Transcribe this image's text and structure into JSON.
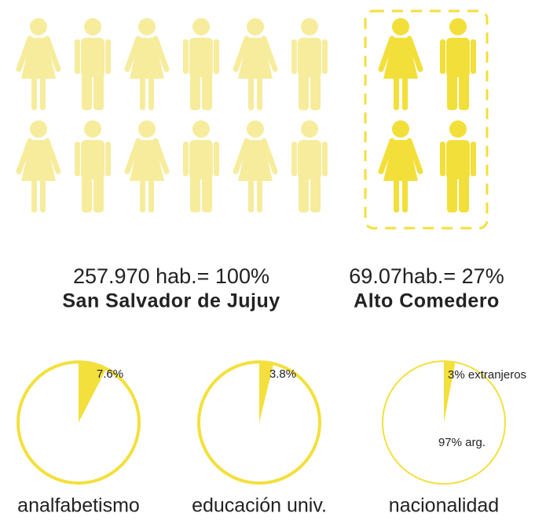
{
  "pictogram": {
    "groups": [
      {
        "label": "257.970 hab.= 100%",
        "name": "San Salvador de Jujuy",
        "figures": 12,
        "color": "#f6ec9c"
      },
      {
        "label": "69.07hab.= 27%",
        "name": "Alto Comedero",
        "figures": 4,
        "color": "#f3df3a"
      }
    ]
  },
  "chart_data": [
    {
      "type": "pie",
      "title": "analfabetismo",
      "values": [
        7.6
      ],
      "value_labels": [
        "7.6%"
      ],
      "colors": [
        "#f3e03c"
      ]
    },
    {
      "type": "pie",
      "title": "educación univ.",
      "values": [
        3.8
      ],
      "value_labels": [
        "3.8%"
      ],
      "colors": [
        "#f3e03c"
      ]
    },
    {
      "type": "pie",
      "title": "nacionalidad",
      "values": [
        3,
        97
      ],
      "value_labels": [
        "3% extranjeros",
        "97% arg."
      ],
      "colors": [
        "#f3e03c",
        "#ffffff"
      ]
    }
  ]
}
